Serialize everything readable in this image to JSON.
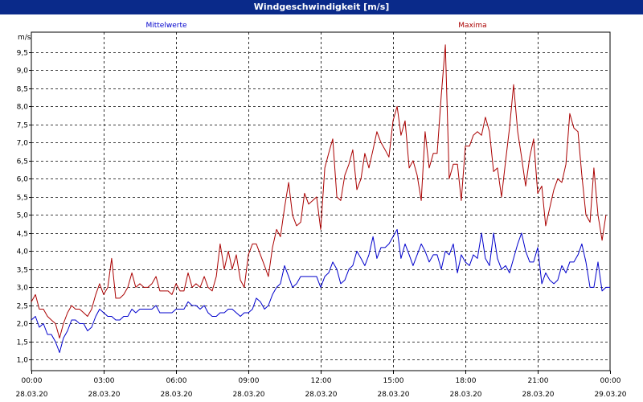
{
  "window": {
    "title": "Windgeschwindigkeit [m/s]"
  },
  "chart_data": {
    "type": "line",
    "title": "Windgeschwindigkeit [m/s]",
    "ylabel": "m/s",
    "ylim": [
      0.7,
      10.05
    ],
    "yticks": [
      "1,0",
      "1,5",
      "2,0",
      "2,5",
      "3,0",
      "3,5",
      "4,0",
      "4,5",
      "5,0",
      "5,5",
      "6,0",
      "6,5",
      "7,0",
      "7,5",
      "8,0",
      "8,5",
      "9,0",
      "9,5"
    ],
    "xlim_hours": [
      0,
      24
    ],
    "xticks": [
      {
        "time": "00:00",
        "date": "28.03.20"
      },
      {
        "time": "03:00",
        "date": "28.03.20"
      },
      {
        "time": "06:00",
        "date": "28.03.20"
      },
      {
        "time": "09:00",
        "date": "28.03.20"
      },
      {
        "time": "12:00",
        "date": "28.03.20"
      },
      {
        "time": "15:00",
        "date": "28.03.20"
      },
      {
        "time": "18:00",
        "date": "28.03.20"
      },
      {
        "time": "21:00",
        "date": "28.03.20"
      },
      {
        "time": "00:00",
        "date": "29.03.20"
      }
    ],
    "grid": true,
    "series": [
      {
        "name": "Mittelwerte",
        "color": "#0000cc",
        "points": [
          [
            0.0,
            2.1
          ],
          [
            0.17,
            2.2
          ],
          [
            0.33,
            1.9
          ],
          [
            0.5,
            2.0
          ],
          [
            0.67,
            1.7
          ],
          [
            0.83,
            1.7
          ],
          [
            1.0,
            1.5
          ],
          [
            1.17,
            1.2
          ],
          [
            1.33,
            1.6
          ],
          [
            1.5,
            1.8
          ],
          [
            1.67,
            2.1
          ],
          [
            1.83,
            2.1
          ],
          [
            2.0,
            2.0
          ],
          [
            2.17,
            2.0
          ],
          [
            2.33,
            1.8
          ],
          [
            2.5,
            1.9
          ],
          [
            2.67,
            2.2
          ],
          [
            2.83,
            2.4
          ],
          [
            3.0,
            2.3
          ],
          [
            3.17,
            2.2
          ],
          [
            3.33,
            2.2
          ],
          [
            3.5,
            2.1
          ],
          [
            3.67,
            2.1
          ],
          [
            3.83,
            2.2
          ],
          [
            4.0,
            2.2
          ],
          [
            4.17,
            2.4
          ],
          [
            4.33,
            2.3
          ],
          [
            4.5,
            2.4
          ],
          [
            4.67,
            2.4
          ],
          [
            4.83,
            2.4
          ],
          [
            5.0,
            2.4
          ],
          [
            5.17,
            2.5
          ],
          [
            5.33,
            2.3
          ],
          [
            5.5,
            2.3
          ],
          [
            5.67,
            2.3
          ],
          [
            5.83,
            2.3
          ],
          [
            6.0,
            2.4
          ],
          [
            6.17,
            2.4
          ],
          [
            6.33,
            2.4
          ],
          [
            6.5,
            2.6
          ],
          [
            6.67,
            2.5
          ],
          [
            6.83,
            2.5
          ],
          [
            7.0,
            2.4
          ],
          [
            7.17,
            2.5
          ],
          [
            7.33,
            2.3
          ],
          [
            7.5,
            2.2
          ],
          [
            7.67,
            2.2
          ],
          [
            7.83,
            2.3
          ],
          [
            8.0,
            2.3
          ],
          [
            8.17,
            2.4
          ],
          [
            8.33,
            2.4
          ],
          [
            8.5,
            2.3
          ],
          [
            8.67,
            2.2
          ],
          [
            8.83,
            2.3
          ],
          [
            9.0,
            2.3
          ],
          [
            9.17,
            2.4
          ],
          [
            9.33,
            2.7
          ],
          [
            9.5,
            2.6
          ],
          [
            9.67,
            2.4
          ],
          [
            9.83,
            2.5
          ],
          [
            10.0,
            2.8
          ],
          [
            10.17,
            3.0
          ],
          [
            10.33,
            3.1
          ],
          [
            10.5,
            3.6
          ],
          [
            10.67,
            3.3
          ],
          [
            10.83,
            3.0
          ],
          [
            11.0,
            3.1
          ],
          [
            11.17,
            3.3
          ],
          [
            11.33,
            3.3
          ],
          [
            11.5,
            3.3
          ],
          [
            11.67,
            3.3
          ],
          [
            11.83,
            3.3
          ],
          [
            12.0,
            3.0
          ],
          [
            12.17,
            3.3
          ],
          [
            12.33,
            3.4
          ],
          [
            12.5,
            3.7
          ],
          [
            12.67,
            3.5
          ],
          [
            12.83,
            3.1
          ],
          [
            13.0,
            3.2
          ],
          [
            13.17,
            3.5
          ],
          [
            13.33,
            3.6
          ],
          [
            13.5,
            4.0
          ],
          [
            13.67,
            3.8
          ],
          [
            13.83,
            3.6
          ],
          [
            14.0,
            3.9
          ],
          [
            14.17,
            4.4
          ],
          [
            14.33,
            3.8
          ],
          [
            14.5,
            4.1
          ],
          [
            14.67,
            4.1
          ],
          [
            14.83,
            4.2
          ],
          [
            15.0,
            4.4
          ],
          [
            15.17,
            4.6
          ],
          [
            15.33,
            3.8
          ],
          [
            15.5,
            4.2
          ],
          [
            15.67,
            3.9
          ],
          [
            15.83,
            3.6
          ],
          [
            16.0,
            3.9
          ],
          [
            16.17,
            4.2
          ],
          [
            16.33,
            4.0
          ],
          [
            16.5,
            3.7
          ],
          [
            16.67,
            3.9
          ],
          [
            16.83,
            3.9
          ],
          [
            17.0,
            3.5
          ],
          [
            17.17,
            4.0
          ],
          [
            17.33,
            3.9
          ],
          [
            17.5,
            4.2
          ],
          [
            17.67,
            3.4
          ],
          [
            17.83,
            3.9
          ],
          [
            18.0,
            3.7
          ],
          [
            18.17,
            3.6
          ],
          [
            18.33,
            3.9
          ],
          [
            18.5,
            3.8
          ],
          [
            18.67,
            4.5
          ],
          [
            18.83,
            3.8
          ],
          [
            19.0,
            3.6
          ],
          [
            19.17,
            4.5
          ],
          [
            19.33,
            3.8
          ],
          [
            19.5,
            3.5
          ],
          [
            19.67,
            3.6
          ],
          [
            19.83,
            3.4
          ],
          [
            20.0,
            3.8
          ],
          [
            20.17,
            4.2
          ],
          [
            20.33,
            4.5
          ],
          [
            20.5,
            4.0
          ],
          [
            20.67,
            3.7
          ],
          [
            20.83,
            3.7
          ],
          [
            21.0,
            4.1
          ],
          [
            21.17,
            3.1
          ],
          [
            21.33,
            3.4
          ],
          [
            21.5,
            3.2
          ],
          [
            21.67,
            3.1
          ],
          [
            21.83,
            3.2
          ],
          [
            22.0,
            3.6
          ],
          [
            22.17,
            3.4
          ],
          [
            22.33,
            3.7
          ],
          [
            22.5,
            3.7
          ],
          [
            22.67,
            3.9
          ],
          [
            22.83,
            4.2
          ],
          [
            23.0,
            3.7
          ],
          [
            23.17,
            3.0
          ],
          [
            23.33,
            3.0
          ],
          [
            23.5,
            3.7
          ],
          [
            23.67,
            2.9
          ],
          [
            23.83,
            3.0
          ],
          [
            24.0,
            3.0
          ]
        ]
      },
      {
        "name": "Maxima",
        "color": "#aa0000",
        "points": [
          [
            0.0,
            2.6
          ],
          [
            0.17,
            2.8
          ],
          [
            0.33,
            2.4
          ],
          [
            0.5,
            2.4
          ],
          [
            0.67,
            2.2
          ],
          [
            0.83,
            2.1
          ],
          [
            1.0,
            2.0
          ],
          [
            1.17,
            1.6
          ],
          [
            1.33,
            2.0
          ],
          [
            1.5,
            2.3
          ],
          [
            1.67,
            2.5
          ],
          [
            1.83,
            2.4
          ],
          [
            2.0,
            2.4
          ],
          [
            2.17,
            2.3
          ],
          [
            2.33,
            2.2
          ],
          [
            2.5,
            2.4
          ],
          [
            2.67,
            2.8
          ],
          [
            2.83,
            3.1
          ],
          [
            3.0,
            2.8
          ],
          [
            3.17,
            3.0
          ],
          [
            3.33,
            3.8
          ],
          [
            3.5,
            2.7
          ],
          [
            3.67,
            2.7
          ],
          [
            3.83,
            2.8
          ],
          [
            4.0,
            3.0
          ],
          [
            4.17,
            3.4
          ],
          [
            4.33,
            3.0
          ],
          [
            4.5,
            3.1
          ],
          [
            4.67,
            3.0
          ],
          [
            4.83,
            3.0
          ],
          [
            5.0,
            3.1
          ],
          [
            5.17,
            3.3
          ],
          [
            5.33,
            2.9
          ],
          [
            5.5,
            2.9
          ],
          [
            5.67,
            2.9
          ],
          [
            5.83,
            2.8
          ],
          [
            6.0,
            3.1
          ],
          [
            6.17,
            2.9
          ],
          [
            6.33,
            2.9
          ],
          [
            6.5,
            3.4
          ],
          [
            6.67,
            3.0
          ],
          [
            6.83,
            3.1
          ],
          [
            7.0,
            3.0
          ],
          [
            7.17,
            3.3
          ],
          [
            7.33,
            3.0
          ],
          [
            7.5,
            2.9
          ],
          [
            7.67,
            3.3
          ],
          [
            7.83,
            4.2
          ],
          [
            8.0,
            3.5
          ],
          [
            8.17,
            4.0
          ],
          [
            8.33,
            3.5
          ],
          [
            8.5,
            3.9
          ],
          [
            8.67,
            3.2
          ],
          [
            8.83,
            3.0
          ],
          [
            9.0,
            3.9
          ],
          [
            9.17,
            4.2
          ],
          [
            9.33,
            4.2
          ],
          [
            9.5,
            3.9
          ],
          [
            9.67,
            3.6
          ],
          [
            9.83,
            3.3
          ],
          [
            10.0,
            4.1
          ],
          [
            10.17,
            4.6
          ],
          [
            10.33,
            4.4
          ],
          [
            10.5,
            5.2
          ],
          [
            10.67,
            5.9
          ],
          [
            10.83,
            5.0
          ],
          [
            11.0,
            4.7
          ],
          [
            11.17,
            4.8
          ],
          [
            11.33,
            5.6
          ],
          [
            11.5,
            5.3
          ],
          [
            11.67,
            5.4
          ],
          [
            11.83,
            5.5
          ],
          [
            12.0,
            4.6
          ],
          [
            12.17,
            6.3
          ],
          [
            12.33,
            6.7
          ],
          [
            12.5,
            7.1
          ],
          [
            12.67,
            5.5
          ],
          [
            12.83,
            5.4
          ],
          [
            13.0,
            6.1
          ],
          [
            13.17,
            6.4
          ],
          [
            13.33,
            6.8
          ],
          [
            13.5,
            5.7
          ],
          [
            13.67,
            6.0
          ],
          [
            13.83,
            6.7
          ],
          [
            14.0,
            6.3
          ],
          [
            14.17,
            6.8
          ],
          [
            14.33,
            7.3
          ],
          [
            14.5,
            7.0
          ],
          [
            14.67,
            6.8
          ],
          [
            14.83,
            6.6
          ],
          [
            15.0,
            7.6
          ],
          [
            15.17,
            8.0
          ],
          [
            15.33,
            7.2
          ],
          [
            15.5,
            7.6
          ],
          [
            15.67,
            6.3
          ],
          [
            15.83,
            6.5
          ],
          [
            16.0,
            6.1
          ],
          [
            16.17,
            5.4
          ],
          [
            16.33,
            7.3
          ],
          [
            16.5,
            6.3
          ],
          [
            16.67,
            6.7
          ],
          [
            16.83,
            6.7
          ],
          [
            17.0,
            8.3
          ],
          [
            17.17,
            9.7
          ],
          [
            17.33,
            6.0
          ],
          [
            17.5,
            6.4
          ],
          [
            17.67,
            6.4
          ],
          [
            17.83,
            5.4
          ],
          [
            18.0,
            6.9
          ],
          [
            18.17,
            6.9
          ],
          [
            18.33,
            7.2
          ],
          [
            18.5,
            7.3
          ],
          [
            18.67,
            7.2
          ],
          [
            18.83,
            7.7
          ],
          [
            19.0,
            7.3
          ],
          [
            19.17,
            6.2
          ],
          [
            19.33,
            6.3
          ],
          [
            19.5,
            5.5
          ],
          [
            19.67,
            6.5
          ],
          [
            19.83,
            7.4
          ],
          [
            20.0,
            8.6
          ],
          [
            20.17,
            7.3
          ],
          [
            20.33,
            6.6
          ],
          [
            20.5,
            5.8
          ],
          [
            20.67,
            6.6
          ],
          [
            20.83,
            7.1
          ],
          [
            21.0,
            5.6
          ],
          [
            21.17,
            5.8
          ],
          [
            21.33,
            4.7
          ],
          [
            21.5,
            5.2
          ],
          [
            21.67,
            5.7
          ],
          [
            21.83,
            6.0
          ],
          [
            22.0,
            5.9
          ],
          [
            22.17,
            6.4
          ],
          [
            22.33,
            7.8
          ],
          [
            22.5,
            7.4
          ],
          [
            22.67,
            7.3
          ],
          [
            22.83,
            6.1
          ],
          [
            23.0,
            5.0
          ],
          [
            23.17,
            4.8
          ],
          [
            23.33,
            6.3
          ],
          [
            23.5,
            5.0
          ],
          [
            23.67,
            4.3
          ],
          [
            23.83,
            5.0
          ]
        ]
      }
    ]
  }
}
